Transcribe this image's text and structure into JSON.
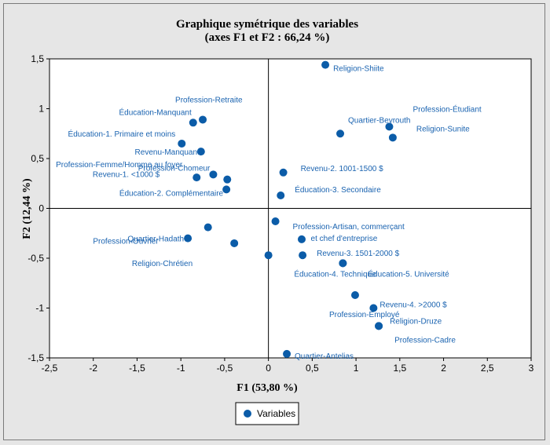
{
  "chart_data": {
    "type": "scatter",
    "title": "Graphique symétrique des variables",
    "subtitle": "(axes F1 et F2 : 66,24 %)",
    "xlabel": "F1 (53,80 %)",
    "ylabel": "F2 (12,44 %)",
    "xlim": [
      -2.5,
      3
    ],
    "ylim": [
      -1.5,
      1.5
    ],
    "xticks": [
      "-2,5",
      "-2",
      "-1,5",
      "-1",
      "-0,5",
      "0",
      "0,5",
      "1",
      "1,5",
      "2",
      "2,5",
      "3"
    ],
    "yticks": [
      "1,5",
      "1",
      "0,5",
      "0",
      "-0,5",
      "-1",
      "-1,5"
    ],
    "grid": false,
    "legend_position": "bottom-center",
    "series": [
      {
        "name": "Variables",
        "color": "#0b5ca8",
        "points": [
          {
            "label": "Religion-Shiite",
            "x": 0.65,
            "y": 1.44
          },
          {
            "label": "Profession-Étudiant",
            "x": 1.38,
            "y": 0.82
          },
          {
            "label": "Religion-Sunite",
            "x": 1.42,
            "y": 0.71
          },
          {
            "label": "Quartier-Beyrouth",
            "x": 0.82,
            "y": 0.75
          },
          {
            "label": "Profession-Retraite",
            "x": -0.75,
            "y": 0.89
          },
          {
            "label": "Éducation-Manquant",
            "x": -0.86,
            "y": 0.86
          },
          {
            "label": "Éducation-1.  Primaire et moins",
            "x": -0.99,
            "y": 0.65
          },
          {
            "label": "Revenu-Manquant",
            "x": -0.77,
            "y": 0.57
          },
          {
            "label": "Profession-Femme/Homme au foyer",
            "x": -0.82,
            "y": 0.31
          },
          {
            "label": "Profession-Chomeur",
            "x": -0.63,
            "y": 0.34
          },
          {
            "label": "Revenu-1. <1000 $",
            "x": -0.47,
            "y": 0.29
          },
          {
            "label": "Éducation-2.  Complémentaire",
            "x": -0.48,
            "y": 0.19
          },
          {
            "label": "Revenu-2. 1001-1500 $",
            "x": 0.17,
            "y": 0.36
          },
          {
            "label": "Éducation-3. Secondaire",
            "x": 0.14,
            "y": 0.13
          },
          {
            "label": "Profession-Artisan, commerçant et chef d'entreprise",
            "x": 0.08,
            "y": -0.13
          },
          {
            "label": "Quartier-Hadath",
            "x": -0.92,
            "y": -0.3
          },
          {
            "label": "Profession-Ouvrier",
            "x": -0.69,
            "y": -0.19
          },
          {
            "label": "Religion-Chrétien",
            "x": -0.39,
            "y": -0.35
          },
          {
            "label": "",
            "x": 0.0,
            "y": -0.47
          },
          {
            "label": "",
            "x": 0.38,
            "y": -0.31
          },
          {
            "label": "Revenu-3. 1501-2000 $",
            "x": 0.39,
            "y": -0.47
          },
          {
            "label": "Éducation-4.  Technique",
            "x": 0.85,
            "y": -0.55
          },
          {
            "label": "Éducation-5.  Université",
            "x": 0.85,
            "y": -0.55
          },
          {
            "label": "Profession-Employé",
            "x": 0.99,
            "y": -0.87
          },
          {
            "label": "Revenu-4.  >2000 $",
            "x": 1.2,
            "y": -1.0
          },
          {
            "label": "Religion-Druze",
            "x": 1.26,
            "y": -1.18
          },
          {
            "label": "Profession-Cadre",
            "x": 1.26,
            "y": -1.18
          },
          {
            "label": "Quartier-Antelias",
            "x": 0.21,
            "y": -1.46
          }
        ]
      }
    ],
    "legend": {
      "label": "Variables"
    }
  }
}
